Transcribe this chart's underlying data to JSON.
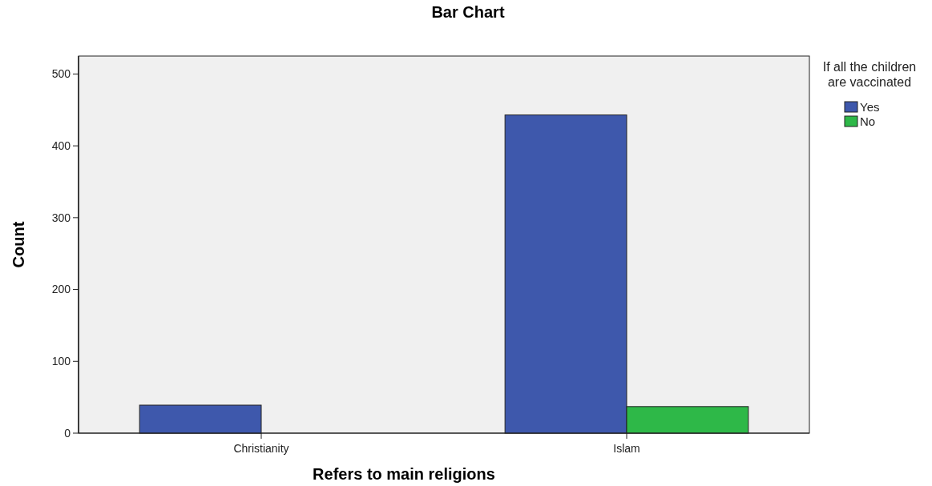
{
  "chart_data": {
    "type": "bar",
    "title": "Bar Chart",
    "xlabel": "Refers to main religions",
    "ylabel": "Count",
    "legend_title": "If all the children are vaccinated",
    "categories": [
      "Christianity",
      "Islam"
    ],
    "series": [
      {
        "name": "Yes",
        "color": "#3e58ac",
        "values": [
          39,
          443
        ]
      },
      {
        "name": "No",
        "color": "#2eb848",
        "values": [
          null,
          37
        ]
      }
    ],
    "ylim": [
      0,
      525
    ],
    "yticks": [
      0,
      100,
      200,
      300,
      400,
      500
    ],
    "grid": false,
    "legend": "top right"
  }
}
